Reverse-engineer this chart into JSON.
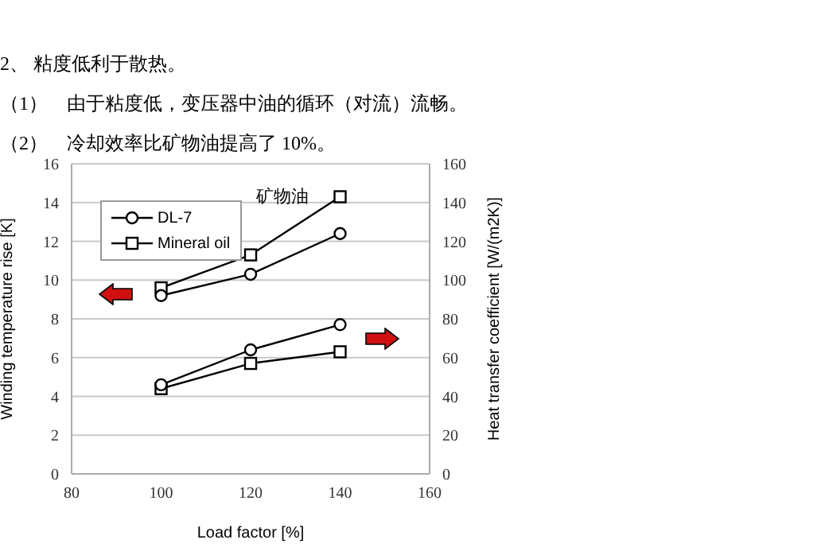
{
  "chart_data": {
    "type": "line",
    "title": "2、 粘度低利于散热。",
    "annotations": [
      "（1）　由于粘度低，变压器中油的循环（对流）流畅。",
      "（2）　冷却效率比矿物油提高了 10%。",
      "矿物油"
    ],
    "xlabel": "Load factor [%]",
    "ylabel": "Winding temperature rise [K]",
    "y2label": "Heat transfer coefficient [W/(m2K)]",
    "x": [
      100,
      120,
      140
    ],
    "series": [
      {
        "name": "DL-7",
        "color": "#000000",
        "marker": "circle",
        "values": [
          9.2,
          10.3,
          12.4
        ]
      },
      {
        "name": "Mineral oil",
        "color": "#000000",
        "marker": "square",
        "values": [
          9.6,
          11.3,
          14.3
        ]
      },
      {
        "color": "#000000",
        "marker": "circle",
        "axis": "y2",
        "values": [
          46,
          64,
          77
        ]
      },
      {
        "color": "#000000",
        "marker": "square",
        "axis": "y2",
        "values": [
          44,
          57,
          63
        ]
      }
    ],
    "xlim": [
      80,
      160
    ],
    "xticks": [
      80,
      100,
      120,
      140,
      160
    ],
    "ylim": [
      0,
      16
    ],
    "yticks": [
      0,
      2,
      4,
      6,
      8,
      10,
      12,
      14,
      16
    ],
    "y2lim": [
      0,
      160
    ],
    "y2ticks": [
      0,
      20,
      40,
      60,
      80,
      100,
      120,
      140,
      160
    ],
    "grid": "y",
    "legend": "top left"
  }
}
